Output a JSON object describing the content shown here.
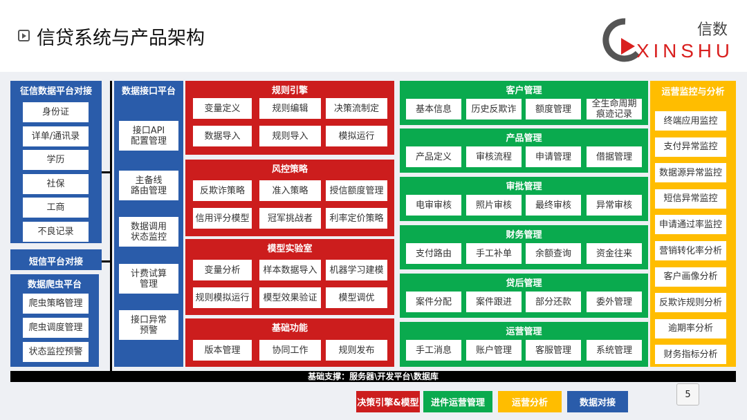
{
  "header": {
    "title": "信贷系统与产品架构",
    "logo_cn": "信数",
    "logo_en": "XINSHU"
  },
  "colors": {
    "blue": "#2a5caa",
    "red": "#cc1d1d",
    "green": "#0aaa4e",
    "yellow": "#ffbd00"
  },
  "credit": {
    "title": "征信数据平台对接",
    "items": [
      "身份证",
      "详单/通讯录",
      "学历",
      "社保",
      "工商",
      "不良记录"
    ]
  },
  "sms": {
    "title": "短信平台对接"
  },
  "crawler": {
    "title": "数据爬虫平台",
    "items": [
      "爬虫策略管理",
      "爬虫调度管理",
      "状态监控预警"
    ]
  },
  "api": {
    "title": "数据接口平台",
    "items": [
      "接口API\n配置管理",
      "主备线\n路由管理",
      "数据调用\n状态监控",
      "计费试算\n管理",
      "接口异常\n预警"
    ]
  },
  "red_sections": [
    {
      "title": "规则引擎",
      "items": [
        "变量定义",
        "规则编辑",
        "决策流制定",
        "数据导入",
        "规则导入",
        "模拟运行"
      ]
    },
    {
      "title": "风控策略",
      "items": [
        "反欺诈策略",
        "准入策略",
        "授信额度管理",
        "信用评分模型",
        "冠军挑战者",
        "利率定价策略"
      ]
    },
    {
      "title": "模型实验室",
      "items": [
        "变量分析",
        "样本数据导入",
        "机器学习建模",
        "规则模拟运行",
        "模型效果验证",
        "模型调优"
      ]
    },
    {
      "title": "基础功能",
      "items": [
        "版本管理",
        "协同工作",
        "规则发布"
      ]
    }
  ],
  "green_sections": [
    {
      "title": "客户管理",
      "items": [
        "基本信息",
        "历史反欺诈",
        "额度管理",
        "全生命周期\n痕迹记录"
      ]
    },
    {
      "title": "产品管理",
      "items": [
        "产品定义",
        "审核流程",
        "申请管理",
        "借据管理"
      ]
    },
    {
      "title": "审批管理",
      "items": [
        "电审审核",
        "照片审核",
        "最终审核",
        "异常审核"
      ]
    },
    {
      "title": "财务管理",
      "items": [
        "支付路由",
        "手工补单",
        "余额查询",
        "资金往来"
      ]
    },
    {
      "title": "贷后管理",
      "items": [
        "案件分配",
        "案件跟进",
        "部分还款",
        "委外管理"
      ]
    },
    {
      "title": "运营管理",
      "items": [
        "手工消息",
        "账户管理",
        "客服管理",
        "系统管理"
      ]
    }
  ],
  "ops": {
    "title": "运营监控与分析",
    "items": [
      "终端应用监控",
      "支付异常监控",
      "数据源异常监控",
      "短信异常监控",
      "申请通过率监控",
      "营销转化率分析",
      "客户画像分析",
      "反欺诈规则分析",
      "逾期率分析",
      "财务指标分析"
    ]
  },
  "base": "基础支撑：服务器\\开发平台\\数据库",
  "legend": [
    "决策引擎&模型",
    "进件运营管理",
    "运营分析",
    "数据对接"
  ],
  "page_number": "5"
}
